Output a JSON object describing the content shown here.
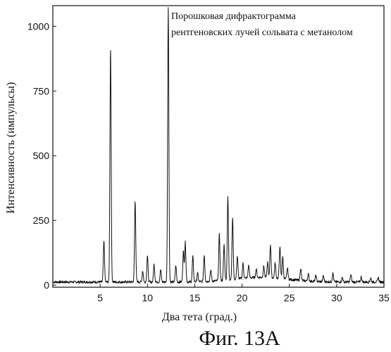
{
  "chart_data": {
    "type": "line",
    "title": "",
    "annotation": [
      "Порошковая дифрактограмма",
      "рентгеновских лучей сольвата с метанолом"
    ],
    "xlabel": "Два тета (град.)",
    "ylabel": "Интенсивность (импульсы)",
    "xlim": [
      0,
      35
    ],
    "ylim": [
      0,
      1080
    ],
    "x_ticks": [
      5,
      10,
      15,
      20,
      25,
      30,
      35
    ],
    "y_ticks": [
      0,
      250,
      500,
      750,
      1000
    ],
    "grid": false,
    "baseline": 12,
    "peaks": [
      {
        "x": 5.4,
        "y": 170
      },
      {
        "x": 6.1,
        "y": 920
      },
      {
        "x": 8.7,
        "y": 325
      },
      {
        "x": 9.5,
        "y": 55
      },
      {
        "x": 10.0,
        "y": 115
      },
      {
        "x": 10.7,
        "y": 80
      },
      {
        "x": 11.4,
        "y": 60
      },
      {
        "x": 12.2,
        "y": 1075
      },
      {
        "x": 13.0,
        "y": 75
      },
      {
        "x": 13.8,
        "y": 130
      },
      {
        "x": 14.0,
        "y": 165
      },
      {
        "x": 14.8,
        "y": 110
      },
      {
        "x": 15.3,
        "y": 45
      },
      {
        "x": 16.0,
        "y": 115
      },
      {
        "x": 16.7,
        "y": 55
      },
      {
        "x": 17.6,
        "y": 190
      },
      {
        "x": 18.1,
        "y": 150
      },
      {
        "x": 18.5,
        "y": 330
      },
      {
        "x": 19.0,
        "y": 250
      },
      {
        "x": 19.5,
        "y": 100
      },
      {
        "x": 20.1,
        "y": 70
      },
      {
        "x": 20.7,
        "y": 60
      },
      {
        "x": 21.5,
        "y": 45
      },
      {
        "x": 22.3,
        "y": 55
      },
      {
        "x": 22.7,
        "y": 70
      },
      {
        "x": 23.0,
        "y": 140
      },
      {
        "x": 23.5,
        "y": 70
      },
      {
        "x": 24.0,
        "y": 135
      },
      {
        "x": 24.3,
        "y": 95
      },
      {
        "x": 24.8,
        "y": 55
      },
      {
        "x": 26.2,
        "y": 60
      },
      {
        "x": 27.0,
        "y": 40
      },
      {
        "x": 27.8,
        "y": 35
      },
      {
        "x": 28.6,
        "y": 35
      },
      {
        "x": 29.6,
        "y": 45
      },
      {
        "x": 30.6,
        "y": 30
      },
      {
        "x": 31.5,
        "y": 40
      },
      {
        "x": 32.6,
        "y": 32
      },
      {
        "x": 33.6,
        "y": 28
      },
      {
        "x": 34.4,
        "y": 30
      }
    ]
  },
  "figure_caption": "Фиг. 13А"
}
